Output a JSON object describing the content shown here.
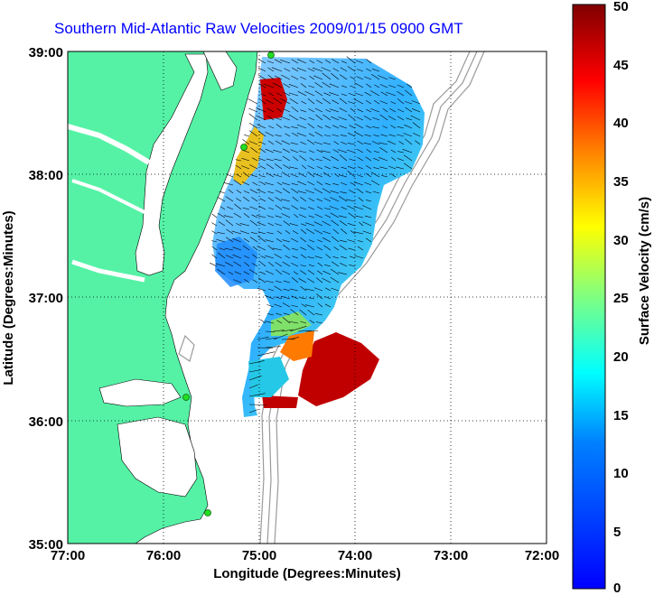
{
  "title": "Southern Mid-Atlantic Raw Velocities 2009/01/15 0900 GMT",
  "map": {
    "xlabel": "Longitude (Degrees:Minutes)",
    "ylabel": "Latitude (Degrees:Minutes)",
    "x_ticks": [
      "77:00",
      "76:00",
      "75:00",
      "74:00",
      "73:00",
      "72:00"
    ],
    "y_ticks": [
      "39:00",
      "38:00",
      "37:00",
      "36:00",
      "35:00"
    ],
    "lon_range": [
      -77,
      -72
    ],
    "lat_range": [
      35,
      39
    ],
    "grid": true,
    "land_color": "#55f2a6",
    "contour_color": "#9a9a9a",
    "station_color": "#22dd22"
  },
  "colorbar": {
    "label": "Surface Velocity (cm/s)",
    "min": 0,
    "max": 50,
    "ticks": [
      "0",
      "5",
      "10",
      "15",
      "20",
      "25",
      "30",
      "35",
      "40",
      "45",
      "50"
    ],
    "colormap": "jet"
  }
}
